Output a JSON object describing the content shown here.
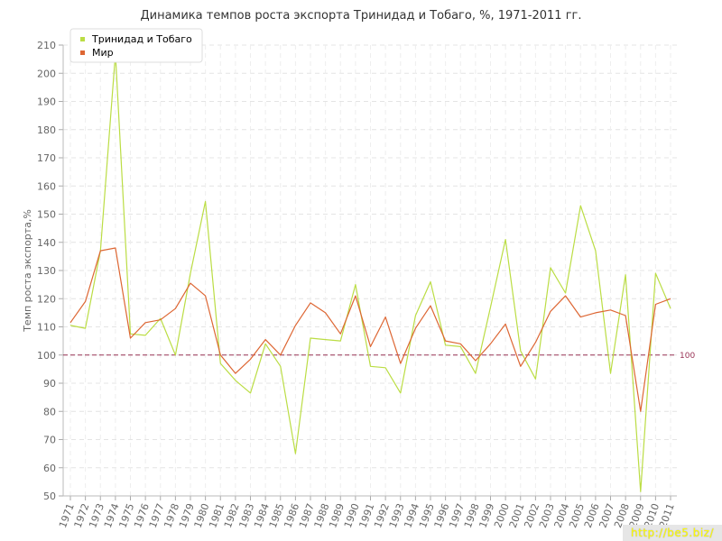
{
  "chart_data": {
    "type": "line",
    "title": "Динамика темпов роста экспорта Тринидад и Тобаго, %, 1971-2011 гг.",
    "xlabel": "",
    "ylabel": "Темп роста экспорта,%",
    "ylim": [
      50,
      210
    ],
    "yticks": [
      50,
      60,
      70,
      80,
      90,
      100,
      110,
      120,
      130,
      140,
      150,
      160,
      170,
      180,
      190,
      200,
      210
    ],
    "x": [
      "1971",
      "1972",
      "1973",
      "1974",
      "1975",
      "1976",
      "1977",
      "1978",
      "1979",
      "1980",
      "1981",
      "1982",
      "1983",
      "1984",
      "1985",
      "1986",
      "1987",
      "1988",
      "1989",
      "1990",
      "1991",
      "1992",
      "1993",
      "1994",
      "1995",
      "1996",
      "1997",
      "1998",
      "1999",
      "2000",
      "2001",
      "2002",
      "2003",
      "2004",
      "2005",
      "2006",
      "2007",
      "2008",
      "2009",
      "2010",
      "2011"
    ],
    "grid": true,
    "legend": "top-left",
    "reference_line": {
      "value": 100,
      "label": "100",
      "color": "#993355"
    },
    "series": [
      {
        "name": "Тринидад и Тобаго",
        "color": "#bbdd44",
        "values": [
          110.5,
          109.5,
          137,
          207,
          107.5,
          107,
          113,
          100,
          129,
          154.5,
          97,
          91,
          86.5,
          104,
          96,
          65,
          106,
          105.5,
          105,
          125,
          96,
          95.5,
          86.5,
          114,
          126,
          103.5,
          103,
          93.5,
          117,
          141,
          101.5,
          91.5,
          131,
          122,
          153,
          137,
          93.5,
          128.5,
          51.5,
          129,
          116.5
        ]
      },
      {
        "name": "Мир",
        "color": "#dd6633",
        "values": [
          111.5,
          119,
          137,
          138,
          106,
          111.5,
          112.5,
          116.5,
          125.5,
          121,
          100,
          93.5,
          98.5,
          105.5,
          100,
          110.5,
          118.5,
          115,
          107.5,
          121,
          103,
          113.5,
          97,
          109.5,
          117.5,
          105,
          104,
          98,
          104,
          111,
          96,
          104.5,
          115.5,
          121,
          113.5,
          115,
          116,
          114,
          80,
          118,
          120
        ]
      }
    ]
  },
  "watermark": "http://be5.biz/"
}
